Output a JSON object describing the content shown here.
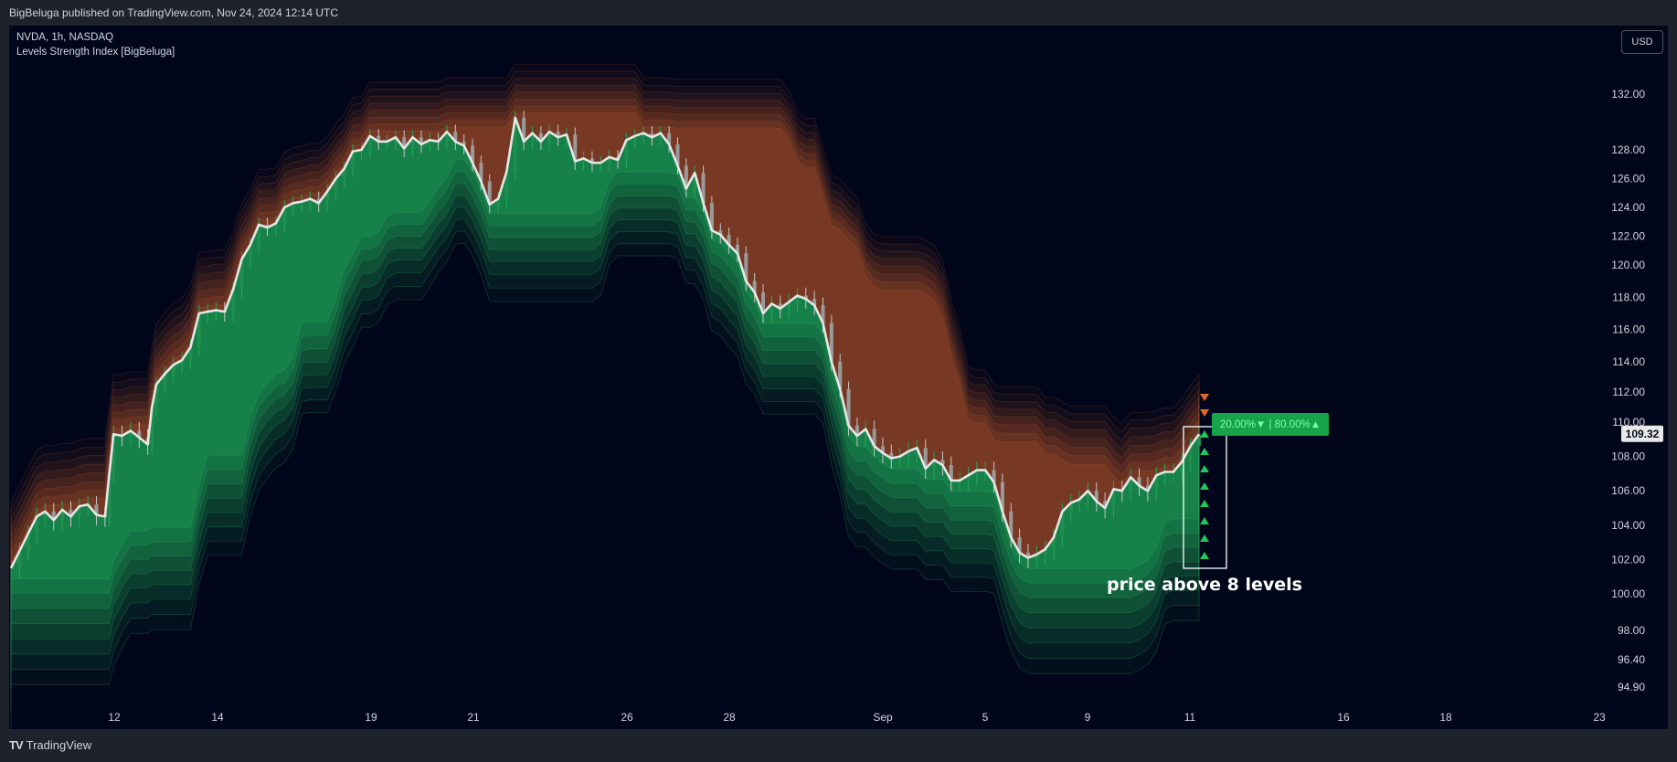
{
  "header": {
    "publisher": "BigBeluga published on TradingView.com, Nov 24, 2024 12:14 UTC"
  },
  "legend": {
    "symbol_line": "NVDA, 1h, NASDAQ",
    "indicator_line": "Levels Strength Index [BigBeluga]"
  },
  "currency_button": "USD",
  "footer": {
    "brand": "TradingView"
  },
  "colors": {
    "background": "#02061a",
    "bull": "#1fa85a",
    "bear": "#b5552a",
    "price_line": "#e6e6e6",
    "up_arrow": "#22c55e",
    "down_arrow": "#e0662a"
  },
  "chart_data": {
    "type": "line",
    "title": "",
    "y_axis_ticks": [
      "132.00",
      "128.00",
      "126.00",
      "124.00",
      "122.00",
      "120.00",
      "118.00",
      "116.00",
      "114.00",
      "112.00",
      "110.00",
      "108.00",
      "106.00",
      "104.00",
      "102.00",
      "100.00",
      "98.00",
      "96.40",
      "94.90"
    ],
    "x_axis_ticks": [
      "12",
      "14",
      "19",
      "21",
      "26",
      "28",
      "Sep",
      "5",
      "9",
      "11",
      "16",
      "18",
      "23"
    ],
    "last_price_label": "109.32",
    "strength_label": "20.00%▼ | 80.00%▲",
    "annotation": "price above 8 levels",
    "series": [
      {
        "values": [
          [
            0,
            101.5
          ],
          [
            2,
            102.5
          ],
          [
            4,
            103.5
          ],
          [
            6,
            104.5
          ],
          [
            8,
            104.8
          ],
          [
            10,
            104.3
          ],
          [
            12,
            104.9
          ],
          [
            14,
            104.5
          ],
          [
            16,
            105.1
          ],
          [
            18,
            105.2
          ],
          [
            20,
            104.6
          ],
          [
            22,
            104.5
          ],
          [
            23,
            107.0
          ],
          [
            24,
            109.3
          ],
          [
            26,
            109.2
          ],
          [
            28,
            109.5
          ],
          [
            30,
            109.1
          ],
          [
            32,
            108.7
          ],
          [
            33,
            111.0
          ],
          [
            34,
            112.5
          ],
          [
            36,
            113.2
          ],
          [
            38,
            113.8
          ],
          [
            40,
            114.1
          ],
          [
            42,
            114.9
          ],
          [
            44,
            117.0
          ],
          [
            46,
            117.1
          ],
          [
            48,
            117.2
          ],
          [
            50,
            117.1
          ],
          [
            52,
            118.5
          ],
          [
            54,
            120.4
          ],
          [
            56,
            121.4
          ],
          [
            58,
            122.8
          ],
          [
            60,
            122.6
          ],
          [
            62,
            122.9
          ],
          [
            64,
            124.0
          ],
          [
            66,
            124.3
          ],
          [
            68,
            124.4
          ],
          [
            70,
            124.6
          ],
          [
            72,
            124.3
          ],
          [
            74,
            125.1
          ],
          [
            76,
            126.0
          ],
          [
            78,
            126.7
          ],
          [
            80,
            127.9
          ],
          [
            82,
            128.0
          ],
          [
            84,
            129.0
          ],
          [
            86,
            128.6
          ],
          [
            88,
            128.6
          ],
          [
            90,
            128.9
          ],
          [
            92,
            128.1
          ],
          [
            94,
            128.9
          ],
          [
            96,
            128.4
          ],
          [
            98,
            128.7
          ],
          [
            100,
            128.6
          ],
          [
            102,
            129.3
          ],
          [
            104,
            128.6
          ],
          [
            106,
            128.3
          ],
          [
            108,
            127.1
          ],
          [
            110,
            125.8
          ],
          [
            112,
            124.2
          ],
          [
            114,
            124.6
          ],
          [
            116,
            126.5
          ],
          [
            118,
            130.3
          ],
          [
            120,
            128.6
          ],
          [
            122,
            129.2
          ],
          [
            124,
            128.6
          ],
          [
            126,
            129.3
          ],
          [
            128,
            128.9
          ],
          [
            130,
            129.1
          ],
          [
            132,
            127.2
          ],
          [
            134,
            127.4
          ],
          [
            136,
            127.1
          ],
          [
            138,
            127.1
          ],
          [
            140,
            127.5
          ],
          [
            142,
            127.3
          ],
          [
            144,
            128.7
          ],
          [
            146,
            129.0
          ],
          [
            148,
            129.2
          ],
          [
            150,
            128.9
          ],
          [
            152,
            129.2
          ],
          [
            154,
            128.4
          ],
          [
            156,
            126.9
          ],
          [
            158,
            125.3
          ],
          [
            160,
            126.4
          ],
          [
            162,
            124.3
          ],
          [
            164,
            122.4
          ],
          [
            166,
            122.1
          ],
          [
            168,
            121.4
          ],
          [
            170,
            120.8
          ],
          [
            172,
            119.0
          ],
          [
            174,
            118.3
          ],
          [
            176,
            117.0
          ],
          [
            178,
            117.6
          ],
          [
            180,
            117.3
          ],
          [
            182,
            117.7
          ],
          [
            184,
            118.1
          ],
          [
            186,
            117.9
          ],
          [
            188,
            117.5
          ],
          [
            190,
            116.4
          ],
          [
            192,
            114.0
          ],
          [
            194,
            112.2
          ],
          [
            196,
            109.8
          ],
          [
            198,
            109.2
          ],
          [
            200,
            109.6
          ],
          [
            202,
            108.6
          ],
          [
            204,
            108.2
          ],
          [
            206,
            107.9
          ],
          [
            208,
            108.0
          ],
          [
            210,
            108.3
          ],
          [
            212,
            108.5
          ],
          [
            214,
            107.3
          ],
          [
            216,
            107.8
          ],
          [
            218,
            107.5
          ],
          [
            220,
            106.6
          ],
          [
            222,
            106.6
          ],
          [
            224,
            106.9
          ],
          [
            226,
            107.2
          ],
          [
            228,
            107.2
          ],
          [
            230,
            106.5
          ],
          [
            232,
            104.8
          ],
          [
            234,
            103.3
          ],
          [
            236,
            102.4
          ],
          [
            238,
            102.1
          ],
          [
            240,
            102.3
          ],
          [
            242,
            102.6
          ],
          [
            244,
            103.3
          ],
          [
            246,
            104.8
          ],
          [
            248,
            105.3
          ],
          [
            250,
            105.5
          ],
          [
            252,
            106.0
          ],
          [
            254,
            105.4
          ],
          [
            256,
            105.0
          ],
          [
            258,
            106.1
          ],
          [
            260,
            106.0
          ],
          [
            262,
            106.8
          ],
          [
            264,
            106.3
          ],
          [
            266,
            106.0
          ],
          [
            268,
            106.9
          ],
          [
            270,
            107.1
          ],
          [
            272,
            107.1
          ],
          [
            274,
            107.7
          ],
          [
            276,
            108.6
          ],
          [
            278,
            109.3
          ]
        ]
      }
    ]
  }
}
